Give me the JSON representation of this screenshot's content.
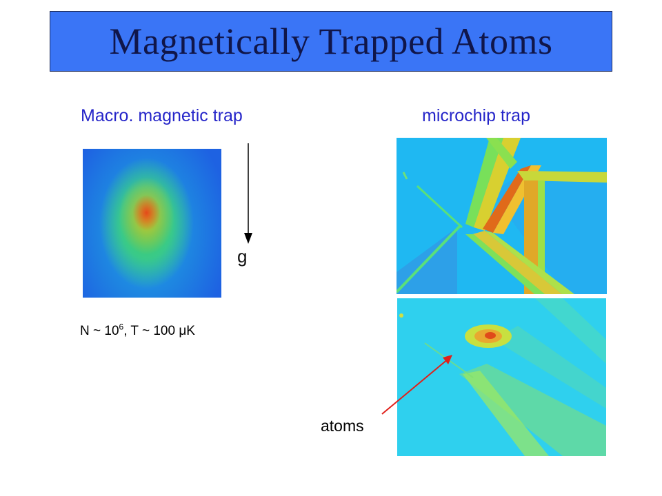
{
  "title": "Magnetically Trapped Atoms",
  "left_panel": {
    "label": "Macro. magnetic trap",
    "gravity_label": "g",
    "stats_prefix": "N ~ 10",
    "stats_exponent": "6",
    "stats_suffix": ", T ~ 100 μK"
  },
  "right_panel": {
    "label": "microchip trap",
    "atoms_label": "atoms"
  },
  "colors": {
    "title_background": "#3a75f6",
    "title_text": "#10164a",
    "label_text": "#2525c9",
    "pointer_arrow": "#e0201a"
  }
}
